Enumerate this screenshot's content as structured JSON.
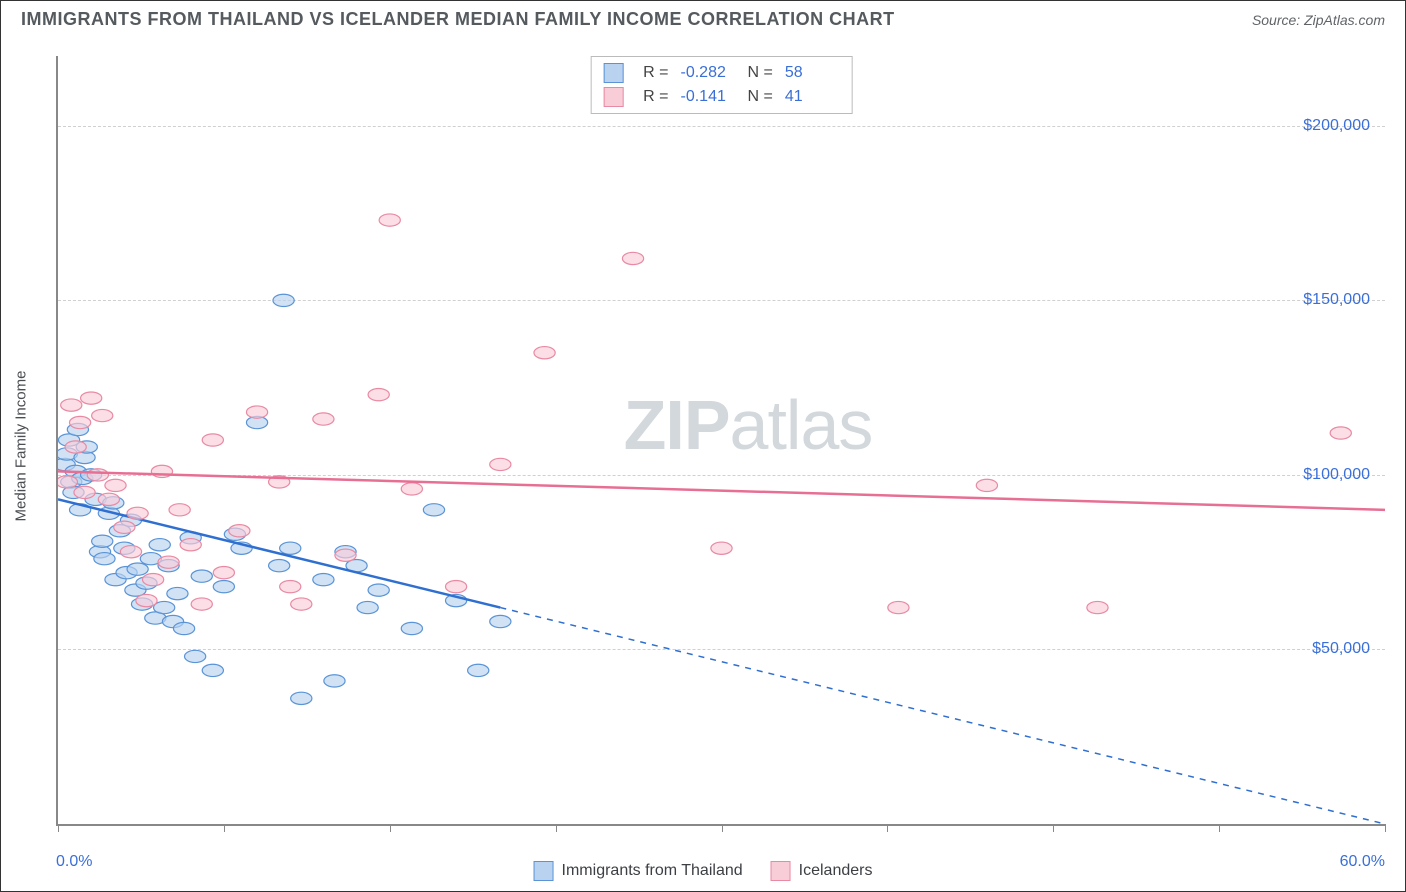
{
  "title": "IMMIGRANTS FROM THAILAND VS ICELANDER MEDIAN FAMILY INCOME CORRELATION CHART",
  "source": "Source: ZipAtlas.com",
  "watermark": {
    "bold": "ZIP",
    "rest": "atlas"
  },
  "chart": {
    "type": "scatter",
    "ylabel": "Median Family Income",
    "background_color": "#ffffff",
    "grid_color": "#d0d0d0",
    "axis_color": "#888888",
    "label_color": "#3a6fd8",
    "xlim": [
      0,
      60
    ],
    "ylim": [
      0,
      220000
    ],
    "xticks": [
      0,
      7.5,
      15,
      22.5,
      30,
      37.5,
      45,
      52.5,
      60
    ],
    "x_min_label": "0.0%",
    "x_max_label": "60.0%",
    "yticks": [
      {
        "v": 50000,
        "label": "$50,000"
      },
      {
        "v": 100000,
        "label": "$100,000"
      },
      {
        "v": 150000,
        "label": "$150,000"
      },
      {
        "v": 200000,
        "label": "$200,000"
      }
    ],
    "marker_radius": 8,
    "marker_stroke_width": 1.2,
    "trend_line_width": 2.5,
    "series": [
      {
        "name": "Immigrants from Thailand",
        "fill": "#b8d2f0",
        "stroke": "#5a94d6",
        "line_color": "#2f6fd0",
        "r_label": "R =",
        "r_value": "-0.282",
        "n_label": "N =",
        "n_value": "58",
        "trend": {
          "x1": 0,
          "y1": 93000,
          "x2": 20,
          "y2": 62000,
          "dash_x2": 60,
          "dash_y2": 0
        },
        "points": [
          [
            0.3,
            103000
          ],
          [
            0.4,
            106000
          ],
          [
            0.5,
            110000
          ],
          [
            0.6,
            98000
          ],
          [
            0.7,
            95000
          ],
          [
            0.8,
            101000
          ],
          [
            0.9,
            113000
          ],
          [
            1.0,
            90000
          ],
          [
            1.1,
            99000
          ],
          [
            1.2,
            105000
          ],
          [
            1.3,
            108000
          ],
          [
            1.5,
            100000
          ],
          [
            1.7,
            93000
          ],
          [
            1.9,
            78000
          ],
          [
            2.0,
            81000
          ],
          [
            2.1,
            76000
          ],
          [
            2.3,
            89000
          ],
          [
            2.5,
            92000
          ],
          [
            2.6,
            70000
          ],
          [
            2.8,
            84000
          ],
          [
            3.0,
            79000
          ],
          [
            3.1,
            72000
          ],
          [
            3.3,
            87000
          ],
          [
            3.5,
            67000
          ],
          [
            3.6,
            73000
          ],
          [
            3.8,
            63000
          ],
          [
            4.0,
            69000
          ],
          [
            4.2,
            76000
          ],
          [
            4.4,
            59000
          ],
          [
            4.6,
            80000
          ],
          [
            4.8,
            62000
          ],
          [
            5.0,
            74000
          ],
          [
            5.2,
            58000
          ],
          [
            5.4,
            66000
          ],
          [
            5.7,
            56000
          ],
          [
            6.0,
            82000
          ],
          [
            6.2,
            48000
          ],
          [
            6.5,
            71000
          ],
          [
            7.0,
            44000
          ],
          [
            7.5,
            68000
          ],
          [
            8.0,
            83000
          ],
          [
            8.3,
            79000
          ],
          [
            9.0,
            115000
          ],
          [
            10.0,
            74000
          ],
          [
            10.2,
            150000
          ],
          [
            10.5,
            79000
          ],
          [
            11.0,
            36000
          ],
          [
            12.0,
            70000
          ],
          [
            12.5,
            41000
          ],
          [
            13.0,
            78000
          ],
          [
            13.5,
            74000
          ],
          [
            14.0,
            62000
          ],
          [
            14.5,
            67000
          ],
          [
            16.0,
            56000
          ],
          [
            17.0,
            90000
          ],
          [
            18.0,
            64000
          ],
          [
            19.0,
            44000
          ],
          [
            20.0,
            58000
          ]
        ]
      },
      {
        "name": "Icelanders",
        "fill": "#f9cdd8",
        "stroke": "#e88aa3",
        "line_color": "#e76f94",
        "r_label": "R =",
        "r_value": "-0.141",
        "n_label": "N =",
        "n_value": "41",
        "trend": {
          "x1": 0,
          "y1": 101000,
          "x2": 60,
          "y2": 90000
        },
        "points": [
          [
            0.4,
            98000
          ],
          [
            0.6,
            120000
          ],
          [
            0.8,
            108000
          ],
          [
            1.0,
            115000
          ],
          [
            1.2,
            95000
          ],
          [
            1.5,
            122000
          ],
          [
            1.8,
            100000
          ],
          [
            2.0,
            117000
          ],
          [
            2.3,
            93000
          ],
          [
            2.6,
            97000
          ],
          [
            3.0,
            85000
          ],
          [
            3.3,
            78000
          ],
          [
            3.6,
            89000
          ],
          [
            4.0,
            64000
          ],
          [
            4.3,
            70000
          ],
          [
            4.7,
            101000
          ],
          [
            5.0,
            75000
          ],
          [
            5.5,
            90000
          ],
          [
            6.0,
            80000
          ],
          [
            6.5,
            63000
          ],
          [
            7.0,
            110000
          ],
          [
            7.5,
            72000
          ],
          [
            8.2,
            84000
          ],
          [
            9.0,
            118000
          ],
          [
            10.0,
            98000
          ],
          [
            10.5,
            68000
          ],
          [
            11.0,
            63000
          ],
          [
            12.0,
            116000
          ],
          [
            13.0,
            77000
          ],
          [
            14.5,
            123000
          ],
          [
            15.0,
            173000
          ],
          [
            16.0,
            96000
          ],
          [
            18.0,
            68000
          ],
          [
            20.0,
            103000
          ],
          [
            22.0,
            135000
          ],
          [
            26.0,
            162000
          ],
          [
            30.0,
            79000
          ],
          [
            38.0,
            62000
          ],
          [
            42.0,
            97000
          ],
          [
            47.0,
            62000
          ],
          [
            58.0,
            112000
          ]
        ]
      }
    ],
    "bottom_legend": [
      {
        "swatch_fill": "#b8d2f0",
        "swatch_stroke": "#5a94d6",
        "text": "Immigrants from Thailand"
      },
      {
        "swatch_fill": "#f9cdd8",
        "swatch_stroke": "#e88aa3",
        "text": "Icelanders"
      }
    ]
  }
}
